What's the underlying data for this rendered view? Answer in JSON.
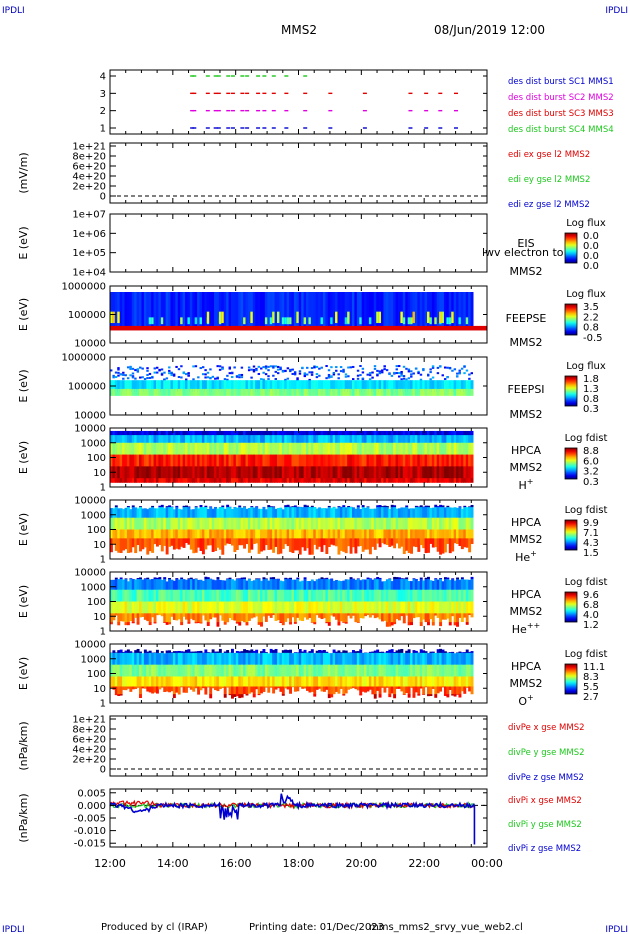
{
  "header": {
    "corner": "IPDLI",
    "title": "MMS2",
    "datetime": "08/Jun/2019 12:00"
  },
  "footer": {
    "producer": "Produced by cl (IRAP)",
    "printing": "Printing date: 01/Dec/2023",
    "file": "mms_mms2_srvy_vue_web2.cl"
  },
  "colors": {
    "red": "#e00000",
    "green": "#1cc81c",
    "blue": "#0000d0",
    "magenta": "#e000e0"
  },
  "chart_data": {
    "type": "multi-panel time series / spectrogram",
    "x_ticks": [
      "12:00",
      "14:00",
      "16:00",
      "18:00",
      "20:00",
      "22:00",
      "00:00"
    ],
    "x_range_hours": [
      12,
      24
    ],
    "panels": [
      {
        "id": "burst",
        "type": "timeline",
        "ylabel": "",
        "yticks": [
          "4",
          "3",
          "2",
          "1"
        ],
        "legend": [
          {
            "text": "des dist burst SC1 MMS1",
            "color": "blue"
          },
          {
            "text": "des dist burst SC2 MMS2",
            "color": "magenta"
          },
          {
            "text": "des dist burst SC3 MMS3",
            "color": "red"
          },
          {
            "text": "des dist burst SC4 MMS4",
            "color": "green"
          }
        ],
        "rows": [
          {
            "level": 4,
            "color": "green",
            "times": [
              14.55,
              14.62,
              15.05,
              15.3,
              15.4,
              15.7,
              15.85,
              16.15,
              16.3,
              16.65,
              16.85,
              17.15,
              17.55,
              18.15
            ]
          },
          {
            "level": 3,
            "color": "red",
            "times": [
              14.55,
              14.62,
              15.05,
              15.3,
              15.4,
              15.7,
              15.85,
              16.15,
              16.3,
              16.65,
              16.85,
              17.15,
              17.55,
              18.15,
              18.95,
              20.05,
              21.5,
              22.0,
              22.45,
              22.95
            ]
          },
          {
            "level": 2,
            "color": "magenta",
            "times": [
              14.55,
              14.62,
              15.05,
              15.3,
              15.4,
              15.7,
              15.85,
              16.15,
              16.3,
              16.65,
              16.85,
              17.15,
              17.55,
              18.15,
              18.95,
              20.05,
              21.5,
              22.0,
              22.45,
              22.95
            ]
          },
          {
            "level": 1,
            "color": "blue",
            "times": [
              14.55,
              14.62,
              15.05,
              15.3,
              15.4,
              15.7,
              15.85,
              16.15,
              16.3,
              16.65,
              16.85,
              17.15,
              17.55,
              18.15,
              18.95,
              20.05,
              21.5,
              22.0,
              22.45,
              22.95
            ]
          }
        ]
      },
      {
        "id": "edi",
        "type": "line",
        "ylabel": "(mV/m)",
        "yticks": [
          "1e+21",
          "8e+20",
          "6e+20",
          "4e+20",
          "2e+20",
          "0"
        ],
        "legend": [
          {
            "text": "edi ex gse l2 MMS2",
            "color": "red"
          },
          {
            "text": "edi ey gse l2 MMS2",
            "color": "green"
          },
          {
            "text": "edi ez gse l2 MMS2",
            "color": "blue"
          }
        ]
      },
      {
        "id": "eis",
        "type": "spectrogram",
        "ylabel": "E (eV)",
        "yticks": [
          "1e+07",
          "1e+06",
          "1e+05",
          "1e+04"
        ],
        "label_lines": [
          "EIS",
          "MMS2"
        ],
        "overlay_text": "lwv electron to",
        "cbar_title": "Log flux",
        "cbar_ticks": [
          "0.0",
          "0.0",
          "0.0",
          "0.0"
        ]
      },
      {
        "id": "feepse",
        "type": "spectrogram",
        "ylabel": "E (eV)",
        "yticks": [
          "1000000",
          "100000",
          "10000"
        ],
        "label_lines": [
          "FEEPSE",
          "MMS2"
        ],
        "cbar_title": "Log flux",
        "cbar_ticks": [
          "3.5",
          "2.2",
          "0.8",
          "-0.5"
        ]
      },
      {
        "id": "feepsi",
        "type": "spectrogram",
        "ylabel": "E (eV)",
        "yticks": [
          "1000000",
          "100000",
          "10000"
        ],
        "label_lines": [
          "FEEPSI",
          "MMS2"
        ],
        "cbar_title": "Log flux",
        "cbar_ticks": [
          "1.8",
          "1.3",
          "0.8",
          "0.3"
        ]
      },
      {
        "id": "hpca_h",
        "type": "spectrogram",
        "ylabel": "E (eV)",
        "yticks": [
          "10000",
          "1000",
          "100",
          "10",
          "1"
        ],
        "label_lines": [
          "HPCA",
          "MMS2"
        ],
        "species": "H",
        "sup": "+",
        "cbar_title": "Log fdist",
        "cbar_ticks": [
          "8.8",
          "6.0",
          "3.2",
          "0.3"
        ]
      },
      {
        "id": "hpca_he1",
        "type": "spectrogram",
        "ylabel": "E (eV)",
        "yticks": [
          "10000",
          "1000",
          "100",
          "10",
          "1"
        ],
        "label_lines": [
          "HPCA",
          "MMS2"
        ],
        "species": "He",
        "sup": "+",
        "cbar_title": "Log fdist",
        "cbar_ticks": [
          "9.9",
          "7.1",
          "4.3",
          "1.5"
        ]
      },
      {
        "id": "hpca_he2",
        "type": "spectrogram",
        "ylabel": "E (eV)",
        "yticks": [
          "10000",
          "1000",
          "100",
          "10",
          "1"
        ],
        "label_lines": [
          "HPCA",
          "MMS2"
        ],
        "species": "He",
        "sup": "++",
        "cbar_title": "Log fdist",
        "cbar_ticks": [
          "9.6",
          "6.8",
          "4.0",
          "1.2"
        ]
      },
      {
        "id": "hpca_o",
        "type": "spectrogram",
        "ylabel": "E (eV)",
        "yticks": [
          "10000",
          "1000",
          "100",
          "10",
          "1"
        ],
        "label_lines": [
          "HPCA",
          "MMS2"
        ],
        "species": "O",
        "sup": "+",
        "cbar_title": "Log fdist",
        "cbar_ticks": [
          "11.1",
          "8.3",
          "5.5",
          "2.7"
        ]
      },
      {
        "id": "divpe",
        "type": "line",
        "ylabel": "(nPa/km)",
        "yticks": [
          "1e+21",
          "8e+20",
          "6e+20",
          "4e+20",
          "2e+20",
          "0"
        ],
        "legend": [
          {
            "text": "divPe x gse MMS2",
            "color": "red"
          },
          {
            "text": "divPe y gse MMS2",
            "color": "green"
          },
          {
            "text": "divPe z gse MMS2",
            "color": "blue"
          }
        ]
      },
      {
        "id": "divpi",
        "type": "line",
        "ylabel": "(nPa/km)",
        "yticks": [
          "0.005",
          "0.000",
          "-0.005",
          "-0.010",
          "-0.015"
        ],
        "ylim": [
          -0.0165,
          0.0065
        ],
        "legend": [
          {
            "text": "divPi x gse MMS2",
            "color": "red"
          },
          {
            "text": "divPi y gse MMS2",
            "color": "green"
          },
          {
            "text": "divPi z gse MMS2",
            "color": "blue"
          }
        ]
      }
    ]
  }
}
